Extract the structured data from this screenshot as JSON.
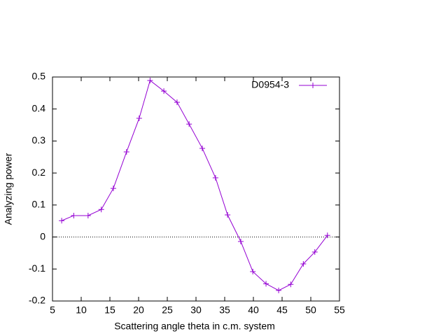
{
  "chart_data": {
    "type": "line",
    "x_label": "Scattering angle theta in c.m. system",
    "y_label": "Analyzing power",
    "x": [
      6.6,
      8.7,
      11.2,
      13.5,
      15.6,
      17.9,
      20.1,
      22.0,
      24.4,
      26.7,
      28.8,
      31.1,
      33.4,
      35.5,
      37.8,
      39.9,
      42.2,
      44.4,
      46.5,
      48.7,
      50.7,
      52.9
    ],
    "series": [
      {
        "name": "D0954-3",
        "color": "#9400d3",
        "values": [
          0.051,
          0.067,
          0.067,
          0.086,
          0.152,
          0.266,
          0.371,
          0.489,
          0.456,
          0.421,
          0.353,
          0.277,
          0.185,
          0.069,
          -0.014,
          -0.108,
          -0.146,
          -0.167,
          -0.148,
          -0.084,
          -0.047,
          0.005
        ]
      }
    ],
    "xlim": [
      5,
      55
    ],
    "xticks": [
      5,
      10,
      15,
      20,
      25,
      30,
      35,
      40,
      45,
      50,
      55
    ],
    "ylim": [
      -0.2,
      0.5
    ],
    "yticks": [
      -0.2,
      -0.1,
      0,
      0.1,
      0.2,
      0.3,
      0.4,
      0.5
    ],
    "zero_axis": true,
    "legend": "top-right",
    "markers": "plus"
  }
}
